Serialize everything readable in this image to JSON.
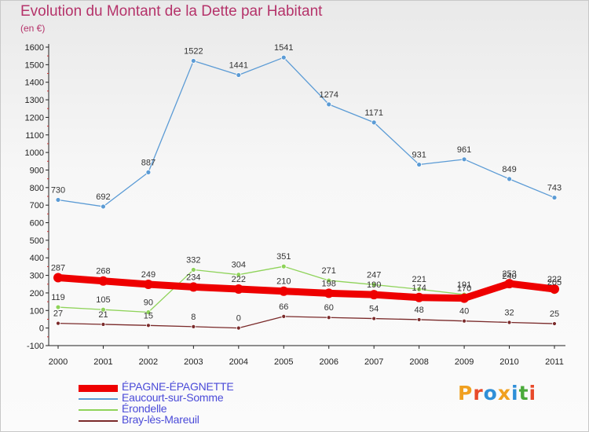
{
  "header": {
    "title": "Evolution du Montant de la Dette par Habitant",
    "subtitle": "(en €)"
  },
  "logo": {
    "text": "Proxiti",
    "colors": [
      "#f0a020",
      "#e84a2a",
      "#2f8fd8",
      "#f0a020",
      "#2f8fd8",
      "#4aaa3a",
      "#e84a2a"
    ]
  },
  "chart_data": {
    "type": "line",
    "title": "Evolution du Montant de la Dette par Habitant",
    "subtitle": "(en €)",
    "xlabel": "",
    "ylabel": "",
    "x": [
      "2000",
      "2001",
      "2002",
      "2003",
      "2004",
      "2005",
      "2006",
      "2007",
      "2008",
      "2009",
      "2010",
      "2011"
    ],
    "ylim": [
      -100,
      1600
    ],
    "yticks": [
      "-100",
      "0",
      "100",
      "200",
      "300",
      "400",
      "500",
      "600",
      "700",
      "800",
      "900",
      "1000",
      "1100",
      "1200",
      "1300",
      "1400",
      "1500",
      "1600"
    ],
    "grid": false,
    "legend_position": "bottom-left",
    "series": [
      {
        "name": "ÉPAGNE-ÉPAGNETTE",
        "color": "#ee0000",
        "values": [
          287,
          268,
          249,
          234,
          222,
          210,
          198,
          190,
          174,
          170,
          253,
          222
        ],
        "labels": [
          "287",
          "268",
          "249",
          "234",
          "222",
          "210",
          "198",
          "190",
          "174",
          "170",
          "253",
          "222"
        ]
      },
      {
        "name": "Eaucourt-sur-Somme",
        "color": "#5b9bd5",
        "values": [
          730,
          692,
          887,
          1522,
          1441,
          1541,
          1274,
          1171,
          931,
          961,
          849,
          743
        ],
        "labels": [
          "730",
          "692",
          "887",
          "1522",
          "1441",
          "1541",
          "1274",
          "1171",
          "931",
          "961",
          "849",
          "743"
        ]
      },
      {
        "name": "Érondelle",
        "color": "#8fd35a",
        "values": [
          119,
          105,
          90,
          332,
          304,
          351,
          271,
          247,
          221,
          191,
          240,
          205
        ],
        "labels": [
          "119",
          "105",
          "90",
          "332",
          "304",
          "351",
          "271",
          "247",
          "221",
          "191",
          "240",
          "205"
        ]
      },
      {
        "name": "Bray-lès-Mareuil",
        "color": "#7a2a2a",
        "values": [
          27,
          21,
          15,
          8,
          0,
          66,
          60,
          54,
          48,
          40,
          32,
          25
        ],
        "labels": [
          "27",
          "21",
          "15",
          "8",
          "0",
          "66",
          "60",
          "54",
          "48",
          "40",
          "32",
          "25"
        ]
      }
    ]
  }
}
